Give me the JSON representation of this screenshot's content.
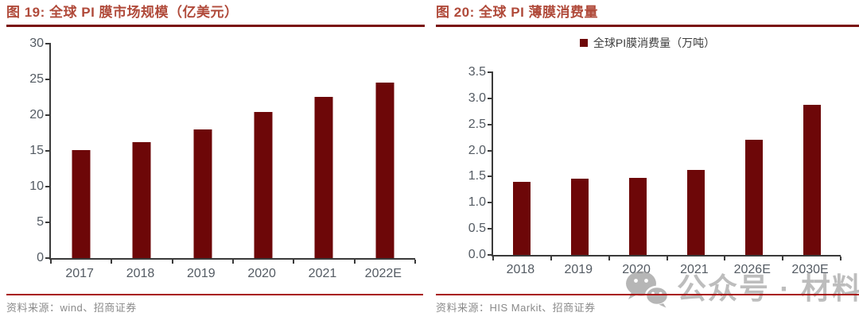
{
  "watermark": {
    "label": "公众号 · 材料圈",
    "icon": "wechat-icon"
  },
  "colors": {
    "bar": "#6d0708",
    "title": "#b04a3a",
    "title_rule": "#7a100e",
    "source_rule": "#a81410",
    "axis": "#3a3a3a",
    "tick_label": "#545b63",
    "source_text": "#8a8a8a",
    "watermark_gray": "#949494"
  },
  "chart_data": [
    {
      "type": "bar",
      "title": "图 19: 全球 PI 膜市场规模（亿美元）",
      "legend": null,
      "categories": [
        "2017",
        "2018",
        "2019",
        "2020",
        "2021",
        "2022E"
      ],
      "values": [
        15.1,
        16.2,
        18.0,
        20.5,
        22.6,
        24.6
      ],
      "ylim": [
        0,
        30
      ],
      "yticks": [
        "0",
        "5",
        "10",
        "15",
        "20",
        "25",
        "30"
      ],
      "grid": false,
      "bar_color": "#6d0708",
      "source": "资料来源：wind、招商证券"
    },
    {
      "type": "bar",
      "title": "图 20: 全球 PI 薄膜消费量",
      "legend": "全球PI膜消费量（万吨）",
      "legend_position": "top-center",
      "categories": [
        "2018",
        "2019",
        "2020",
        "2021",
        "2026E",
        "2030E"
      ],
      "values": [
        1.4,
        1.46,
        1.48,
        1.63,
        2.2,
        2.87
      ],
      "ylim": [
        0,
        3.5
      ],
      "yticks": [
        "0.0",
        "0.5",
        "1.0",
        "1.5",
        "2.0",
        "2.5",
        "3.0",
        "3.5"
      ],
      "grid": false,
      "bar_color": "#6d0708",
      "source": "资料来源：HIS Markit、招商证券"
    }
  ]
}
